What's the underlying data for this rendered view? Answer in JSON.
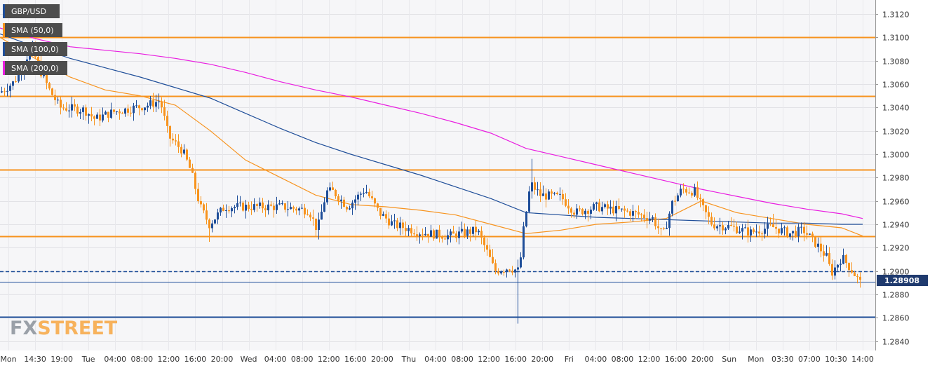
{
  "chart_data": {
    "type": "candlestick",
    "symbol": "GBP/USD",
    "price_badge": "1.28908",
    "watermark": {
      "prefix": "FX",
      "suffix": "STREET"
    },
    "y_ticks": [
      "1.3120",
      "1.3100",
      "1.3080",
      "1.3060",
      "1.3040",
      "1.3020",
      "1.3000",
      "1.2980",
      "1.2960",
      "1.2940",
      "1.2920",
      "1.2900",
      "1.2880",
      "1.2860",
      "1.2840"
    ],
    "ylim": [
      1.2832,
      1.3132
    ],
    "x_ticks": [
      "Mon",
      "14:30",
      "19:00",
      "Tue",
      "04:00",
      "08:00",
      "12:00",
      "16:00",
      "20:00",
      "Wed",
      "04:00",
      "08:00",
      "12:00",
      "16:00",
      "20:00",
      "Thu",
      "04:00",
      "08:00",
      "12:00",
      "16:00",
      "20:00",
      "Fri",
      "04:00",
      "08:00",
      "12:00",
      "16:00",
      "20:00",
      "Sun",
      "Mon",
      "03:30",
      "07:00",
      "10:30",
      "14:00"
    ],
    "levels": [
      {
        "value": 1.31,
        "color": "#f7931e",
        "style": "solid"
      },
      {
        "value": 1.305,
        "color": "#f7931e",
        "style": "solid"
      },
      {
        "value": 1.2987,
        "color": "#f7931e",
        "style": "solid"
      },
      {
        "value": 1.293,
        "color": "#f7931e",
        "style": "solid"
      },
      {
        "value": 1.29,
        "color": "#1f4e99",
        "style": "dashed"
      },
      {
        "value": 1.2861,
        "color": "#1f4e99",
        "style": "solid"
      },
      {
        "value": 1.28908,
        "color": "#1f4e99",
        "style": "thin"
      }
    ],
    "series": [
      {
        "name": "SMA (50,0)",
        "color": "#f7931e",
        "x": [
          0,
          50,
          100,
          150,
          200,
          250,
          300,
          350,
          400,
          450,
          500,
          550,
          600,
          650,
          700,
          750,
          800,
          850,
          900,
          950,
          1000,
          1050,
          1100,
          1150,
          1200,
          1230
        ],
        "values": [
          1.31,
          1.3082,
          1.3066,
          1.3055,
          1.305,
          1.3042,
          1.302,
          1.2995,
          1.298,
          1.2965,
          1.2957,
          1.2955,
          1.2952,
          1.2948,
          1.294,
          1.2932,
          1.2935,
          1.294,
          1.2942,
          1.2945,
          1.296,
          1.295,
          1.2945,
          1.294,
          1.2937,
          1.293
        ]
      },
      {
        "name": "SMA (100,0)",
        "color": "#1f4e99",
        "x": [
          0,
          50,
          100,
          150,
          200,
          250,
          300,
          350,
          400,
          450,
          500,
          550,
          600,
          650,
          700,
          750,
          800,
          850,
          900,
          950,
          1000,
          1050,
          1100,
          1150,
          1200,
          1230
        ],
        "values": [
          1.3103,
          1.3092,
          1.3082,
          1.3074,
          1.3066,
          1.3057,
          1.3048,
          1.3035,
          1.3022,
          1.301,
          1.3,
          1.2991,
          1.2982,
          1.2972,
          1.2962,
          1.295,
          1.2948,
          1.2946,
          1.2945,
          1.2944,
          1.2943,
          1.2942,
          1.2941,
          1.2941,
          1.294,
          1.294
        ]
      },
      {
        "name": "SMA (200,0)",
        "color": "#e91ee0",
        "x": [
          0,
          50,
          100,
          150,
          200,
          250,
          300,
          350,
          400,
          450,
          500,
          550,
          600,
          650,
          700,
          750,
          800,
          850,
          900,
          950,
          1000,
          1050,
          1100,
          1150,
          1200,
          1230
        ],
        "values": [
          1.3108,
          1.3099,
          1.3092,
          1.3089,
          1.3086,
          1.3082,
          1.3077,
          1.307,
          1.3062,
          1.3055,
          1.3049,
          1.3042,
          1.3035,
          1.3027,
          1.3018,
          1.3005,
          1.2998,
          1.2991,
          1.2984,
          1.2977,
          1.297,
          1.2964,
          1.2958,
          1.2953,
          1.2949,
          1.2945
        ]
      }
    ]
  }
}
